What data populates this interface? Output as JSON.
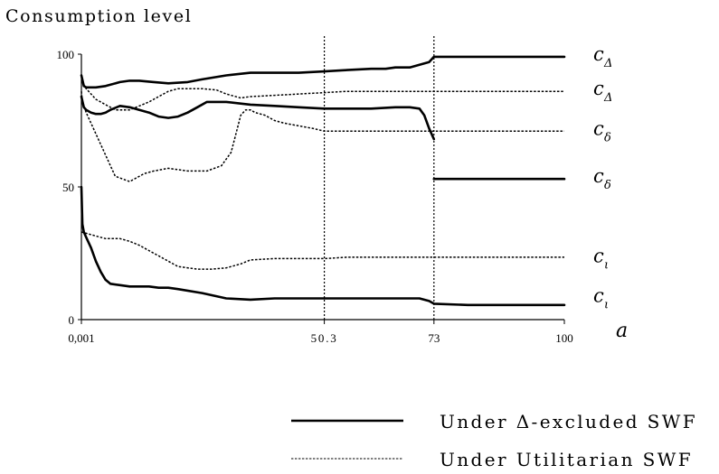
{
  "chart_data": {
    "type": "line",
    "ylabel": "Consumption level",
    "xlabel": "a",
    "xlim": [
      0.001,
      100
    ],
    "ylim": [
      0,
      100
    ],
    "x_tick_labels": [
      "0,001",
      "50.3",
      "73",
      "100"
    ],
    "y_tick_labels": [
      "0",
      "50",
      "100"
    ],
    "vlines": [
      50.3,
      73
    ],
    "curve_labels": [
      {
        "symbol": "c",
        "sub": "Δ",
        "y": 99
      },
      {
        "symbol": "c",
        "sub": "Δ",
        "y": 86
      },
      {
        "symbol": "c",
        "sub": "δ",
        "y": 71
      },
      {
        "symbol": "c",
        "sub": "δ",
        "y": 53
      },
      {
        "symbol": "c",
        "sub": "ι",
        "y": 23
      },
      {
        "symbol": "c",
        "sub": "ι",
        "y": 8
      }
    ],
    "series": [
      {
        "style": "solid",
        "x": [
          0.001,
          0.5,
          1,
          3,
          5,
          8,
          10,
          12,
          15,
          18,
          22,
          25,
          30,
          35,
          40,
          45,
          50.3,
          55,
          60,
          63,
          65,
          68,
          70,
          72,
          73,
          80,
          90,
          100
        ],
        "y": [
          92,
          88,
          87.5,
          87.5,
          88,
          89.5,
          90,
          90,
          89.5,
          89,
          89.5,
          90.5,
          92,
          93,
          93,
          93,
          93.5,
          94,
          94.5,
          94.5,
          95,
          95,
          96,
          97,
          99,
          99,
          99,
          99
        ]
      },
      {
        "style": "solid",
        "x": [
          0.001,
          0.5,
          1,
          2,
          3,
          4,
          5,
          6,
          8,
          10,
          12,
          14,
          16,
          18,
          20,
          22,
          24,
          26,
          30,
          35,
          40,
          45,
          50.3,
          55,
          60,
          65,
          68,
          70,
          71,
          72,
          73
        ],
        "y": [
          84,
          80,
          79,
          78,
          77.5,
          77.5,
          78,
          79,
          80.5,
          80,
          79,
          78,
          76.5,
          76,
          76.5,
          78,
          80,
          82,
          82,
          81,
          80.5,
          80,
          79.5,
          79.5,
          79.5,
          80,
          80,
          79.5,
          77,
          72,
          68
        ]
      },
      {
        "style": "solid",
        "x": [
          73,
          80,
          90,
          100
        ],
        "y": [
          53,
          53,
          53,
          53
        ]
      },
      {
        "style": "solid",
        "x": [
          0.001,
          0.2,
          0.5,
          1,
          2,
          3,
          4,
          5,
          6,
          8,
          10,
          12,
          14,
          16,
          18,
          20,
          25,
          30,
          35,
          40,
          45,
          50.3,
          55,
          60,
          65,
          70,
          72,
          73,
          80,
          90,
          100
        ],
        "y": [
          50,
          36,
          33,
          31,
          27,
          22,
          18,
          15,
          13.5,
          13,
          12.5,
          12.5,
          12.5,
          12,
          12,
          11.5,
          10,
          8,
          7.5,
          8,
          8,
          8,
          8,
          8,
          8,
          8,
          7,
          6,
          5.5,
          5.5,
          5.5
        ]
      },
      {
        "style": "dotted",
        "x": [
          0.001,
          0.2,
          1,
          3,
          5,
          7,
          10,
          13,
          15,
          18,
          22,
          26,
          29,
          31,
          32,
          33,
          34,
          35,
          36,
          38,
          40,
          42,
          45,
          48,
          50.3,
          55,
          60,
          65,
          70,
          73,
          80,
          90,
          100
        ],
        "y": [
          86,
          82,
          78,
          70,
          62,
          54,
          52,
          55,
          56,
          57,
          56,
          56,
          58,
          63,
          70,
          77,
          79,
          79,
          78,
          77,
          75,
          74,
          73,
          72,
          71,
          71,
          71,
          71,
          71,
          71,
          71,
          71,
          71
        ]
      },
      {
        "style": "dotted",
        "x": [
          0.001,
          1,
          3,
          5,
          7,
          10,
          12,
          14,
          16,
          18,
          20,
          22,
          25,
          28,
          30,
          33,
          35,
          40,
          45,
          50.3,
          55,
          60,
          65,
          70,
          73,
          80,
          90,
          100
        ],
        "y": [
          90,
          87,
          83,
          81,
          79,
          79,
          80.5,
          82,
          84,
          86,
          87,
          87,
          87,
          86.5,
          85,
          83.5,
          84,
          84.5,
          85,
          85.5,
          86,
          86,
          86,
          86,
          86,
          86,
          86,
          86
        ]
      },
      {
        "style": "dotted",
        "x": [
          0.001,
          1,
          3,
          5,
          8,
          10,
          12,
          14,
          16,
          18,
          20,
          24,
          27,
          30,
          33,
          35,
          40,
          45,
          50.3,
          55,
          60,
          65,
          70,
          73,
          80,
          90,
          100
        ],
        "y": [
          33,
          32.5,
          31.5,
          30.5,
          30.5,
          29.5,
          28,
          26,
          24,
          22,
          20,
          19,
          19,
          19.5,
          21,
          22.5,
          23,
          23,
          23,
          23.5,
          23.5,
          23.5,
          23.5,
          23.5,
          23.5,
          23.5,
          23.5
        ]
      }
    ],
    "legend": {
      "placement": "bottom-right",
      "entries": [
        {
          "style": "solid",
          "label": "Under Δ-excluded SWF"
        },
        {
          "style": "dotted",
          "label": "Under Utilitarian SWF"
        }
      ]
    }
  }
}
